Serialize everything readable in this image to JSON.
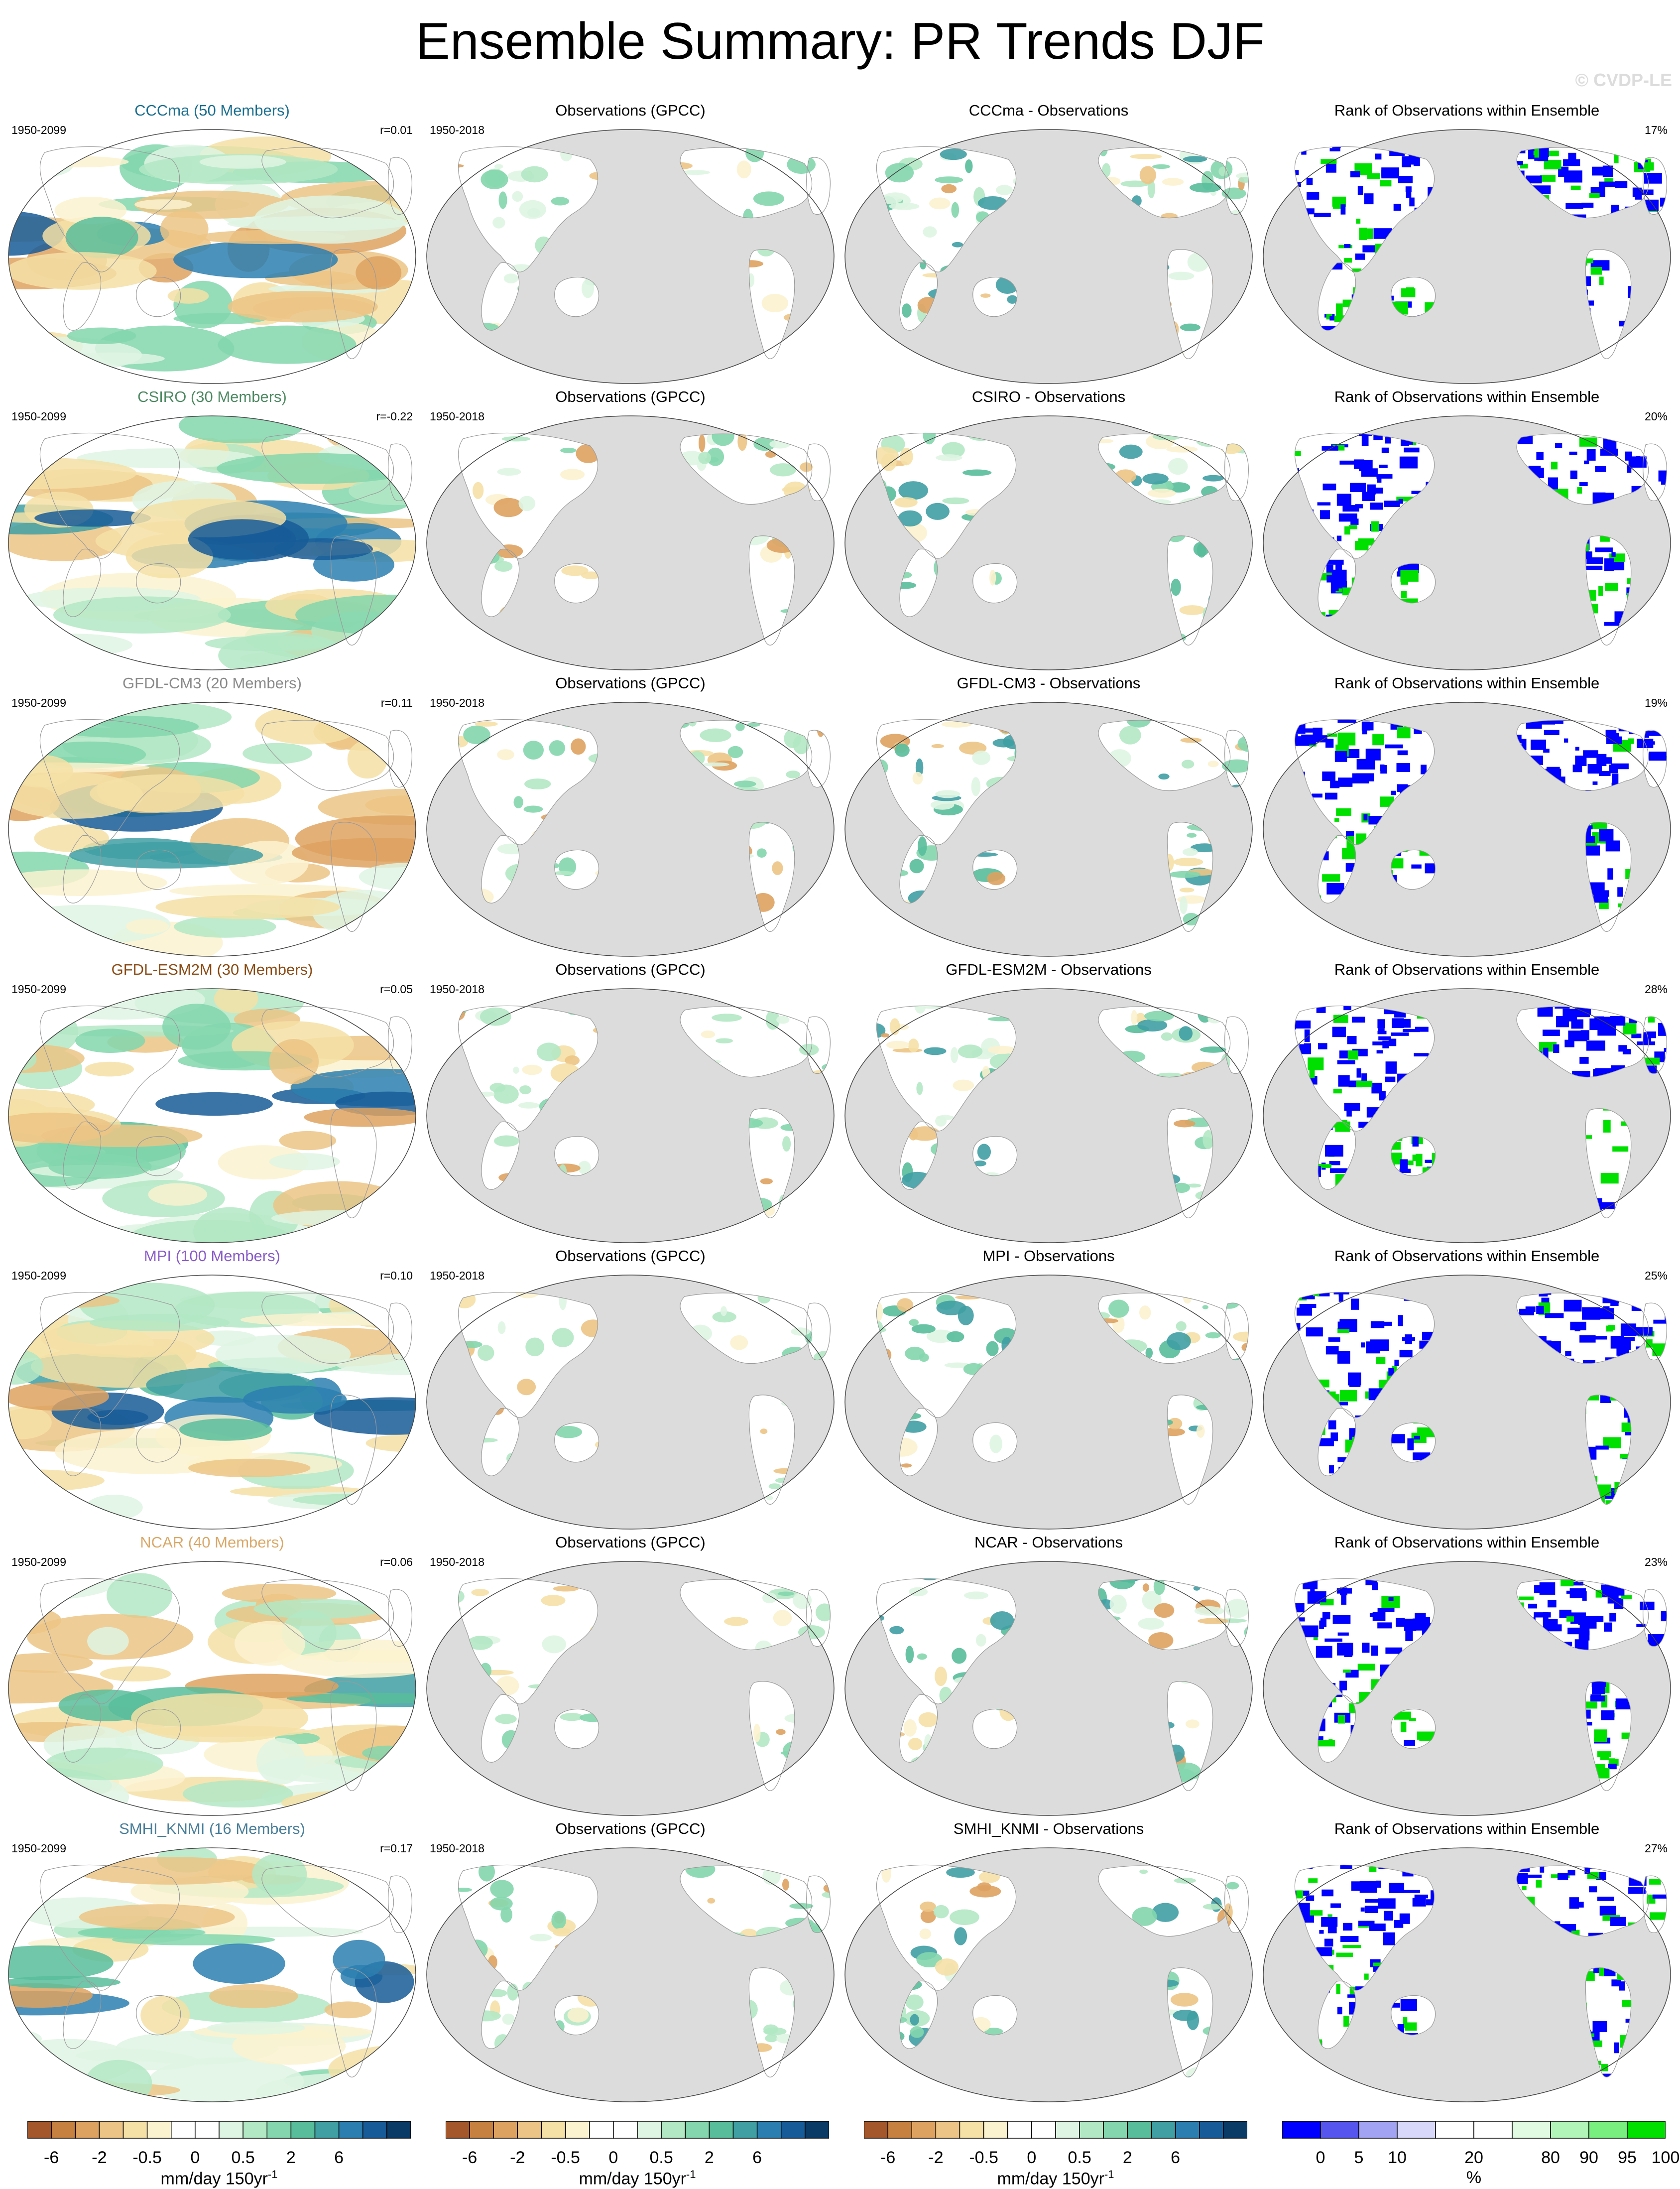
{
  "title": "Ensemble Summary: PR Trends DJF",
  "watermark": "© CVDP-LE",
  "rows": [
    {
      "ens_title": "CCCma (50 Members)",
      "color": "#1b6f8f",
      "left_label": "1950-2099",
      "right_label": "r=0.01",
      "obs_title": "Observations (GPCC)",
      "obs_left": "1950-2018",
      "diff_title": "CCCma - Observations",
      "rank_title": "Rank of Observations within Ensemble",
      "rank_pct": "17%"
    },
    {
      "ens_title": "CSIRO (30 Members)",
      "color": "#4e8a63",
      "left_label": "1950-2099",
      "right_label": "r=-0.22",
      "obs_title": "Observations (GPCC)",
      "obs_left": "1950-2018",
      "diff_title": "CSIRO - Observations",
      "rank_title": "Rank of Observations within Ensemble",
      "rank_pct": "20%"
    },
    {
      "ens_title": "GFDL-CM3 (20 Members)",
      "color": "#8a8a8a",
      "left_label": "1950-2099",
      "right_label": "r=0.11",
      "obs_title": "Observations (GPCC)",
      "obs_left": "1950-2018",
      "diff_title": "GFDL-CM3 - Observations",
      "rank_title": "Rank of Observations within Ensemble",
      "rank_pct": "19%"
    },
    {
      "ens_title": "GFDL-ESM2M (30 Members)",
      "color": "#8a4b14",
      "left_label": "1950-2099",
      "right_label": "r=0.05",
      "obs_title": "Observations (GPCC)",
      "obs_left": "1950-2018",
      "diff_title": "GFDL-ESM2M - Observations",
      "rank_title": "Rank of Observations within Ensemble",
      "rank_pct": "28%"
    },
    {
      "ens_title": "MPI (100 Members)",
      "color": "#8a5cc8",
      "left_label": "1950-2099",
      "right_label": "r=0.10",
      "obs_title": "Observations (GPCC)",
      "obs_left": "1950-2018",
      "diff_title": "MPI - Observations",
      "rank_title": "Rank of Observations within Ensemble",
      "rank_pct": "25%"
    },
    {
      "ens_title": "NCAR (40 Members)",
      "color": "#d9a868",
      "left_label": "1950-2099",
      "right_label": "r=0.06",
      "obs_title": "Observations (GPCC)",
      "obs_left": "1950-2018",
      "diff_title": "NCAR - Observations",
      "rank_title": "Rank of Observations within Ensemble",
      "rank_pct": "23%"
    },
    {
      "ens_title": "SMHI_KNMI (16 Members)",
      "color": "#4a7f9a",
      "left_label": "1950-2099",
      "right_label": "r=0.17",
      "obs_title": "Observations (GPCC)",
      "obs_left": "1950-2018",
      "diff_title": "SMHI_KNMI - Observations",
      "rank_title": "Rank of Observations within Ensemble",
      "rank_pct": "27%"
    }
  ],
  "colorbars": {
    "trend_colors": [
      "#a4572b",
      "#c6803f",
      "#dea260",
      "#ecc485",
      "#f5e0a6",
      "#fbf2cf",
      "#ffffff",
      "#ffffff",
      "#dff5e3",
      "#b3e8c4",
      "#83d6ad",
      "#58bd9b",
      "#3f9fa3",
      "#2b7fb0",
      "#175c98",
      "#0a3a66"
    ],
    "trend_ticks": [
      "-6",
      "-2",
      "-2",
      "-0.5",
      "0",
      "0.5",
      "2",
      "6"
    ],
    "trend_tick_pos": [
      1,
      3,
      3,
      5,
      7,
      9,
      11,
      13
    ],
    "trend_unit": "mm/day 150yr",
    "trend_unit_sup": "-1",
    "rank_colors": [
      "#0000ff",
      "#5656ee",
      "#a3a3f3",
      "#d8d8fb",
      "#ffffff",
      "#ffffff",
      "#e0fbe2",
      "#b2f5b8",
      "#79ef80",
      "#00e000"
    ],
    "rank_ticks": [
      "0",
      "5",
      "10",
      "20",
      "80",
      "90",
      "95",
      "100"
    ],
    "rank_tick_pos": [
      1,
      2,
      3,
      5,
      7,
      8,
      9,
      10
    ],
    "rank_unit": "%"
  }
}
